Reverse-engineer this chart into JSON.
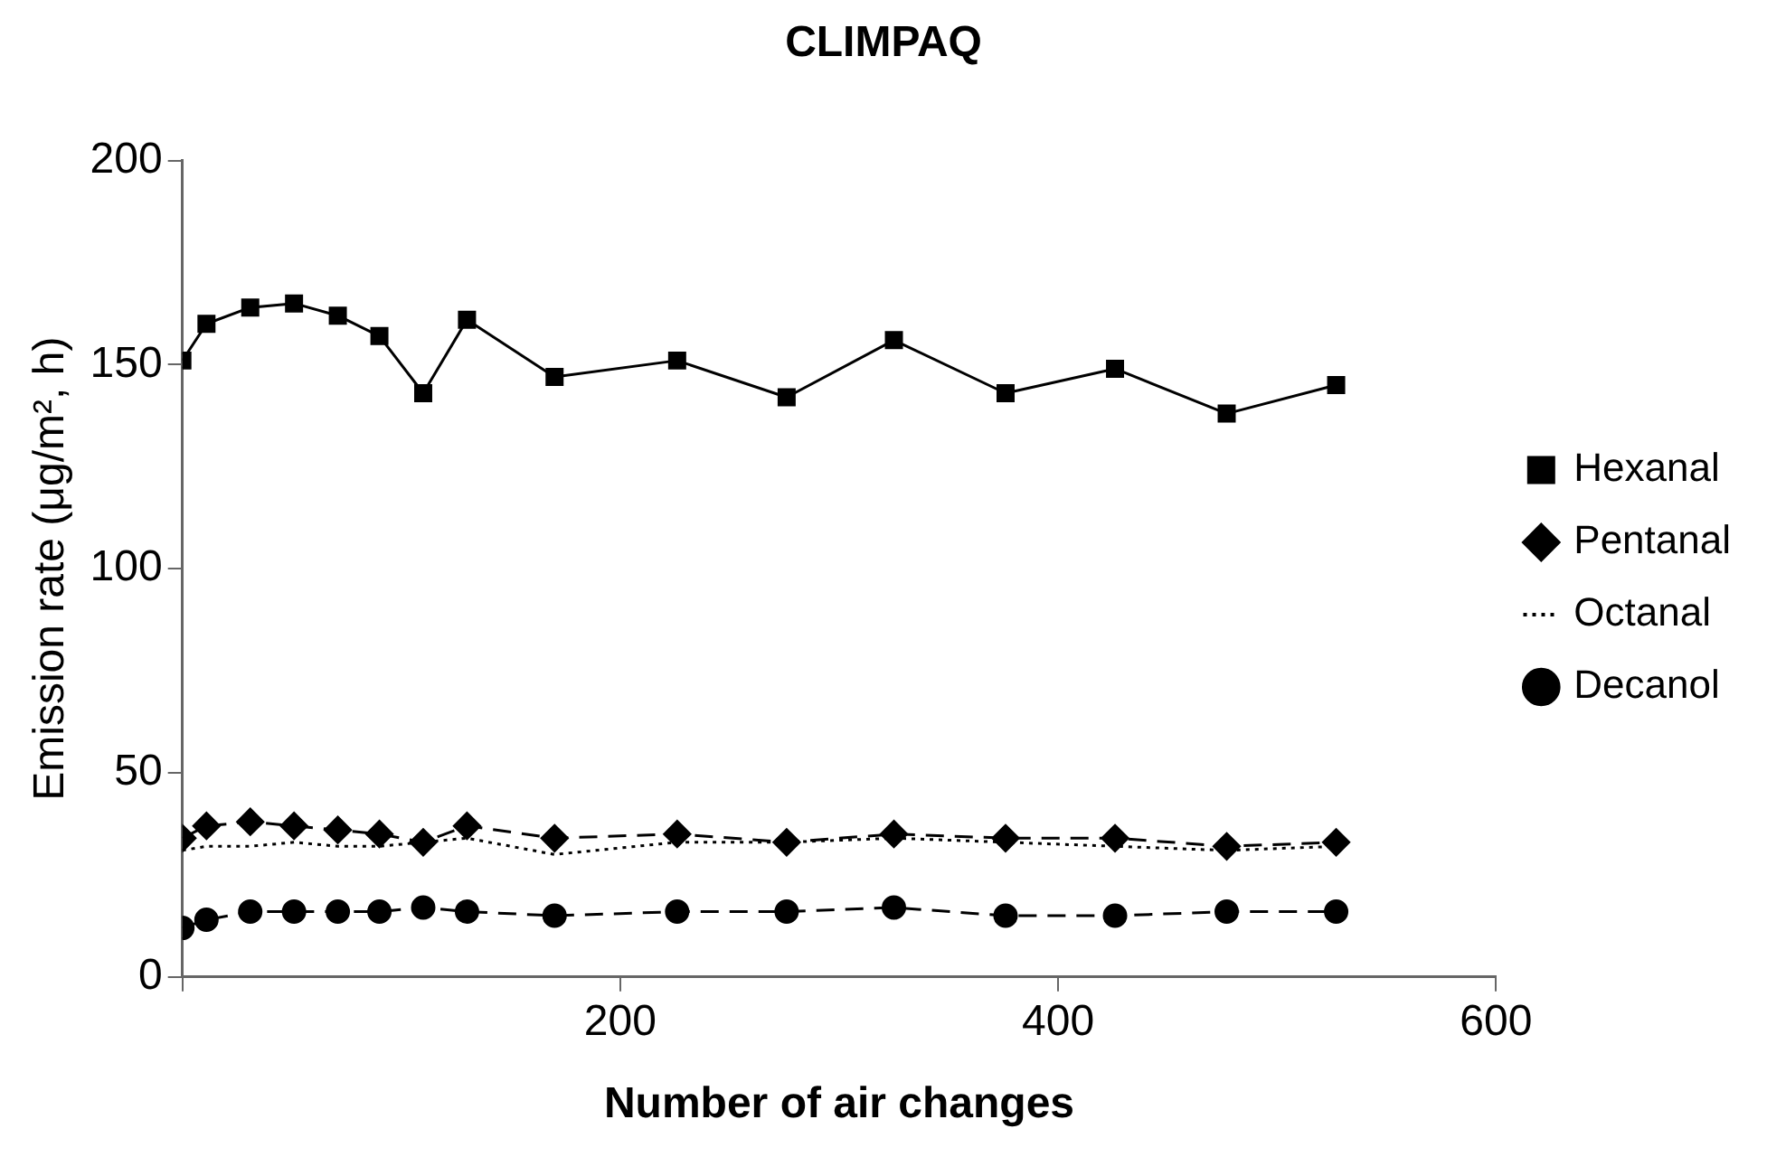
{
  "chart_data": {
    "type": "line",
    "title": "CLIMPAQ",
    "xlabel": "Number of air changes",
    "ylabel": "Emission rate (μg/m², h)",
    "x": [
      0,
      11,
      31,
      51,
      71,
      90,
      110,
      130,
      170,
      226,
      276,
      325,
      376,
      426,
      477,
      527
    ],
    "xlim": [
      0,
      600
    ],
    "xticks": [
      {
        "value": 0,
        "label": null
      },
      200,
      400,
      600
    ],
    "ylim": [
      0,
      200
    ],
    "yticks": [
      0,
      50,
      100,
      150,
      200
    ],
    "grid": false,
    "legend": "right",
    "series": [
      {
        "name": "Hexanal",
        "color": "#000000",
        "marker": "square",
        "line_style": "solid",
        "values": [
          151,
          160,
          164,
          165,
          162,
          157,
          143,
          161,
          147,
          151,
          142,
          156,
          143,
          149,
          138,
          145
        ]
      },
      {
        "name": "Pentanal",
        "color": "#000000",
        "marker": "diamond",
        "line_style": "dashed",
        "values": [
          34,
          37,
          38,
          37,
          36,
          35,
          33,
          37,
          34,
          35,
          33,
          35,
          34,
          34,
          32,
          33
        ]
      },
      {
        "name": "Octanal",
        "color": "#000000",
        "marker": "none",
        "line_style": "dotted",
        "values": [
          31,
          32,
          32,
          33,
          32,
          32,
          33,
          34,
          30,
          33,
          33,
          34,
          33,
          32,
          31,
          32
        ]
      },
      {
        "name": "Decanol",
        "color": "#000000",
        "marker": "circle",
        "line_style": "dashed",
        "values": [
          12,
          14,
          16,
          16,
          16,
          16,
          17,
          16,
          15,
          16,
          16,
          17,
          15,
          15,
          16,
          16
        ]
      }
    ]
  }
}
